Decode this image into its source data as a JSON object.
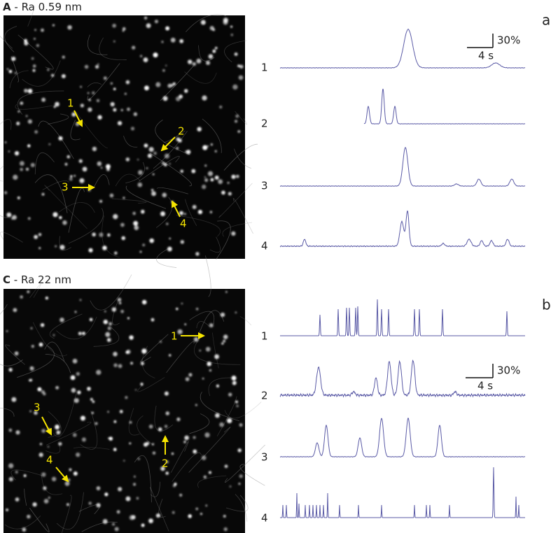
{
  "panels": [
    {
      "label": "A",
      "title": "- Ra 0.59 nm",
      "trace_panel": "a",
      "arrow_labels": [
        "1",
        "2",
        "3",
        "4"
      ],
      "trace_labels": [
        "1",
        "2",
        "3",
        "4"
      ],
      "scale": {
        "y": "30%",
        "x": "4 s"
      }
    },
    {
      "label": "C",
      "title": "- Ra 22 nm",
      "trace_panel": "b",
      "arrow_labels": [
        "1",
        "2",
        "3",
        "4"
      ],
      "trace_labels": [
        "1",
        "2",
        "3",
        "4"
      ],
      "scale": {
        "y": "30%",
        "x": "4 s"
      }
    }
  ]
}
